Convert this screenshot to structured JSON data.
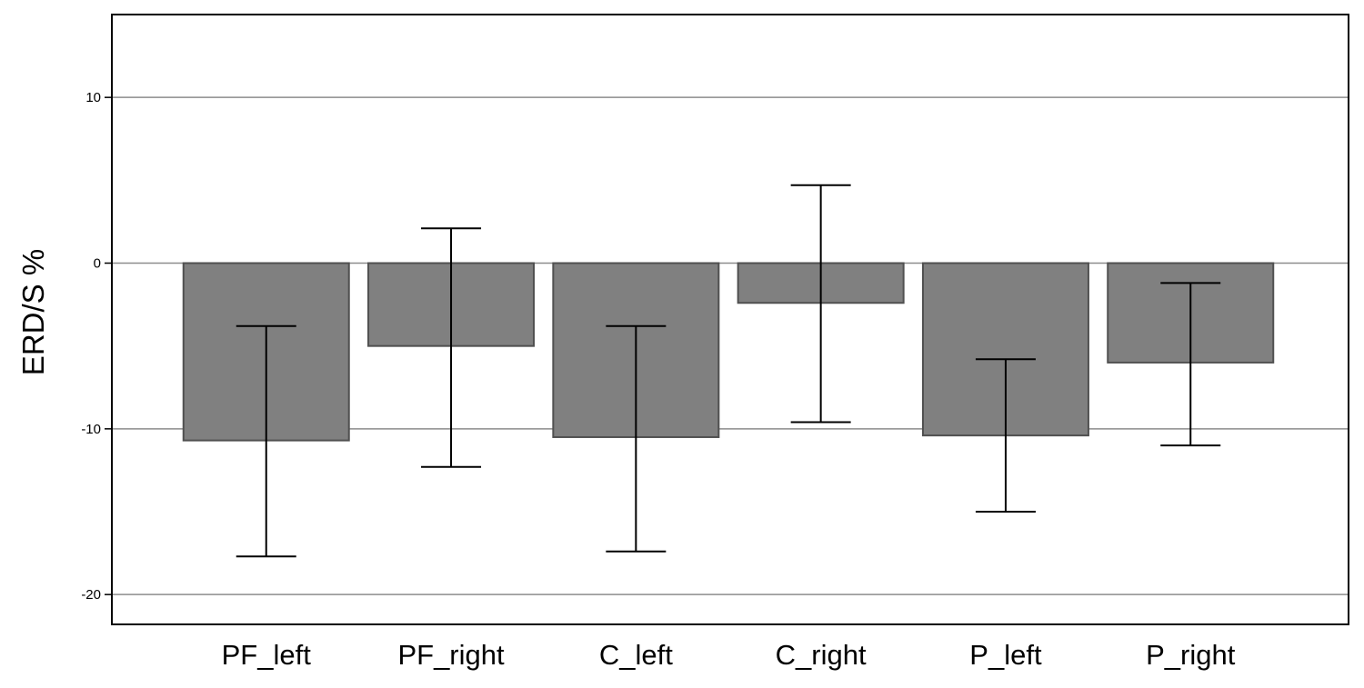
{
  "chart_data": {
    "type": "bar",
    "categories": [
      "PF_left",
      "PF_right",
      "C_left",
      "C_right",
      "P_left",
      "P_right"
    ],
    "values": [
      -10.7,
      -5.0,
      -10.5,
      -2.4,
      -10.4,
      -6.0
    ],
    "error_bars": [
      {
        "low": -17.7,
        "high": -3.8
      },
      {
        "low": -12.3,
        "high": 2.1
      },
      {
        "low": -17.4,
        "high": -3.8
      },
      {
        "low": -9.6,
        "high": 4.7
      },
      {
        "low": -15.0,
        "high": -5.8
      },
      {
        "low": -11.0,
        "high": -1.2
      }
    ],
    "title": "",
    "xlabel": "",
    "ylabel": "ERD/S %",
    "ylim": [
      -21.8,
      15.0
    ],
    "yticks": [
      10,
      0,
      -10,
      -20
    ],
    "ytick_labels": [
      "10",
      "0",
      "-10",
      "-20"
    ],
    "grid": true,
    "bar_color": "#808080",
    "bar_edge_color": "#505050",
    "errorbar_color": "#000000"
  }
}
